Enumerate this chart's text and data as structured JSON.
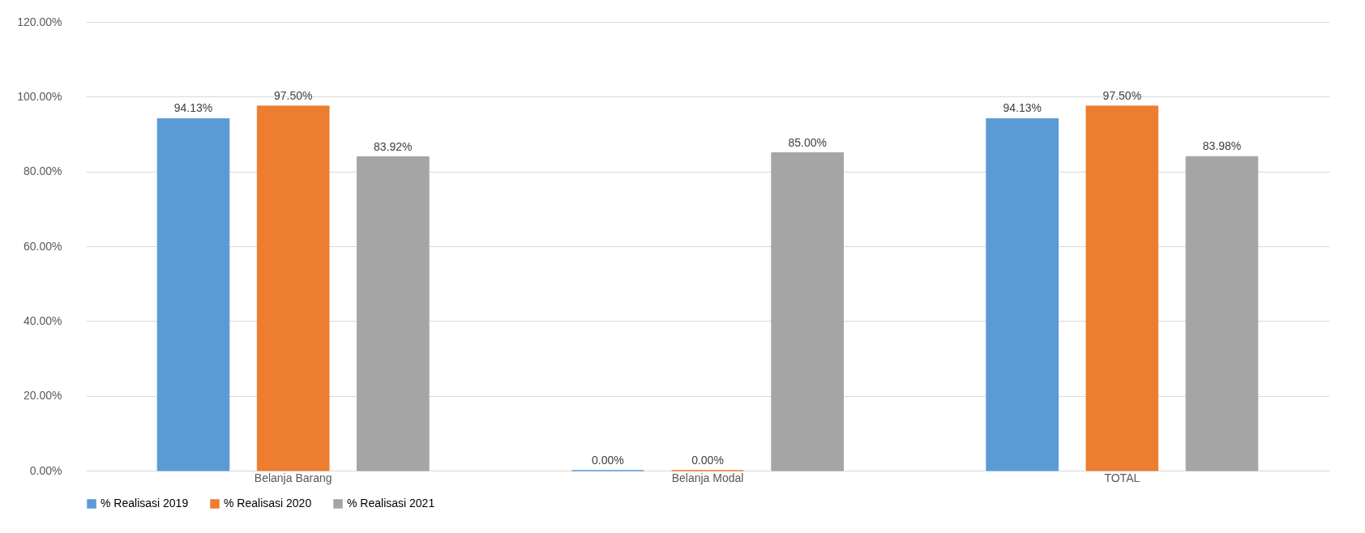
{
  "chart_data": {
    "type": "bar",
    "categories": [
      "Belanja Barang",
      "Belanja Modal",
      "TOTAL"
    ],
    "series": [
      {
        "name": "% Realisasi 2019",
        "color": "#5b9bd5",
        "values": [
          94.13,
          0,
          94.13
        ],
        "value_labels": [
          "94.13%",
          "0.00%",
          "94.13%"
        ]
      },
      {
        "name": "% Realisasi 2020",
        "color": "#ed7d31",
        "values": [
          97.5,
          0,
          97.5
        ],
        "value_labels": [
          "97.50%",
          "0.00%",
          "97.50%"
        ]
      },
      {
        "name": "% Realisasi 2021",
        "color": "#a5a5a5",
        "values": [
          83.92,
          85,
          83.98
        ],
        "value_labels": [
          "83.92%",
          "85.00%",
          "83.98%"
        ]
      }
    ],
    "ylim": [
      0,
      120
    ],
    "yticks": [
      {
        "value": 0,
        "label": "0.00%"
      },
      {
        "value": 20,
        "label": "20.00%"
      },
      {
        "value": 40,
        "label": "40.00%"
      },
      {
        "value": 60,
        "label": "60.00%"
      },
      {
        "value": 80,
        "label": "80.00%"
      },
      {
        "value": 100,
        "label": "100.00%"
      },
      {
        "value": 120,
        "label": "120.00%"
      }
    ],
    "grid": "y",
    "legend": "bottom"
  }
}
